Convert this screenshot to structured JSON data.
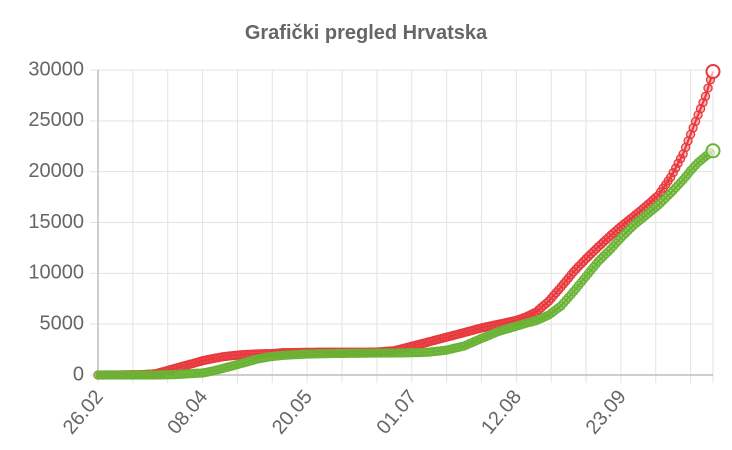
{
  "chart_data": {
    "type": "line",
    "title": "Grafički pregled Hrvatska",
    "xlabel": "",
    "ylabel": "",
    "ylim": [
      0,
      30000
    ],
    "yticks": [
      0,
      5000,
      10000,
      15000,
      20000,
      25000,
      30000
    ],
    "xlim": [
      "26.02",
      "30.10"
    ],
    "xticks": [
      "26.02",
      "08.04",
      "20.05",
      "01.07",
      "12.08",
      "23.09"
    ],
    "grid": true,
    "legend": "none",
    "series": [
      {
        "color": "#e8383d",
        "points": [
          [
            "26.02",
            3
          ],
          [
            "05.03",
            10
          ],
          [
            "12.03",
            32
          ],
          [
            "16.03",
            56
          ],
          [
            "20.03",
            128
          ],
          [
            "23.03",
            315
          ],
          [
            "27.03",
            586
          ],
          [
            "31.03",
            867
          ],
          [
            "04.04",
            1126
          ],
          [
            "08.04",
            1407
          ],
          [
            "12.04",
            1600
          ],
          [
            "16.04",
            1791
          ],
          [
            "20.04",
            1908
          ],
          [
            "25.04",
            2016
          ],
          [
            "30.04",
            2076
          ],
          [
            "05.05",
            2101
          ],
          [
            "10.05",
            2192
          ],
          [
            "20.05",
            2234
          ],
          [
            "31.05",
            2246
          ],
          [
            "10.06",
            2252
          ],
          [
            "17.06",
            2262
          ],
          [
            "24.06",
            2394
          ],
          [
            "01.07",
            2831
          ],
          [
            "08.07",
            3272
          ],
          [
            "15.07",
            3722
          ],
          [
            "22.07",
            4168
          ],
          [
            "29.07",
            4634
          ],
          [
            "05.08",
            5000
          ],
          [
            "12.08",
            5376
          ],
          [
            "16.08",
            5720
          ],
          [
            "20.08",
            6200
          ],
          [
            "25.08",
            7255
          ],
          [
            "30.08",
            8663
          ],
          [
            "04.09",
            10148
          ],
          [
            "09.09",
            11428
          ],
          [
            "14.09",
            12626
          ],
          [
            "19.09",
            13749
          ],
          [
            "23.09",
            14606
          ],
          [
            "28.09",
            15572
          ],
          [
            "03.10",
            16593
          ],
          [
            "08.10",
            17659
          ],
          [
            "13.10",
            19446
          ],
          [
            "18.10",
            21741
          ],
          [
            "21.10",
            23665
          ],
          [
            "24.10",
            25580
          ],
          [
            "27.10",
            27410
          ],
          [
            "30.10",
            29850
          ]
        ]
      },
      {
        "color": "#6ab335",
        "points": [
          [
            "26.02",
            0
          ],
          [
            "12.03",
            0
          ],
          [
            "20.03",
            5
          ],
          [
            "27.03",
            30
          ],
          [
            "31.03",
            80
          ],
          [
            "04.04",
            150
          ],
          [
            "08.04",
            201
          ],
          [
            "12.04",
            390
          ],
          [
            "16.04",
            640
          ],
          [
            "20.04",
            900
          ],
          [
            "25.04",
            1230
          ],
          [
            "30.04",
            1580
          ],
          [
            "05.05",
            1790
          ],
          [
            "10.05",
            1930
          ],
          [
            "20.05",
            2062
          ],
          [
            "31.05",
            2120
          ],
          [
            "10.06",
            2140
          ],
          [
            "17.06",
            2160
          ],
          [
            "24.06",
            2170
          ],
          [
            "01.07",
            2190
          ],
          [
            "08.07",
            2250
          ],
          [
            "15.07",
            2450
          ],
          [
            "22.07",
            2850
          ],
          [
            "29.07",
            3600
          ],
          [
            "05.08",
            4300
          ],
          [
            "12.08",
            4800
          ],
          [
            "16.08",
            5100
          ],
          [
            "20.08",
            5350
          ],
          [
            "25.08",
            5900
          ],
          [
            "30.08",
            6800
          ],
          [
            "04.09",
            8200
          ],
          [
            "09.09",
            9700
          ],
          [
            "14.09",
            11200
          ],
          [
            "19.09",
            12400
          ],
          [
            "23.09",
            13500
          ],
          [
            "28.09",
            14700
          ],
          [
            "03.10",
            15700
          ],
          [
            "08.10",
            16700
          ],
          [
            "13.10",
            17900
          ],
          [
            "18.10",
            19200
          ],
          [
            "21.10",
            20100
          ],
          [
            "24.10",
            20900
          ],
          [
            "27.10",
            21500
          ],
          [
            "30.10",
            22050
          ]
        ]
      }
    ]
  }
}
